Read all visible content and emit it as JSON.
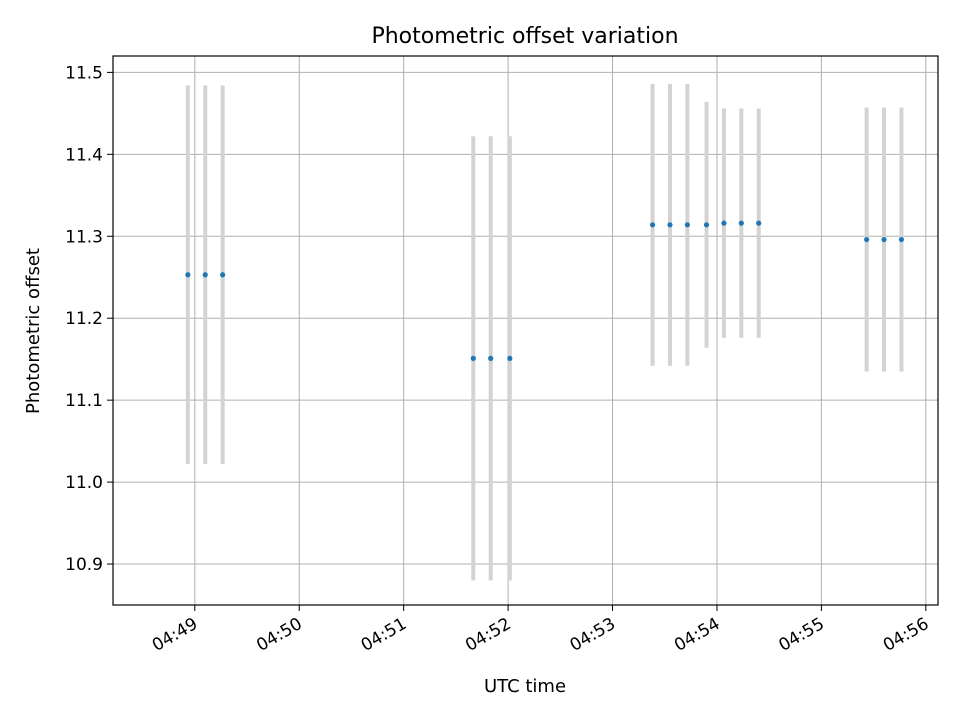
{
  "chart_data": {
    "type": "scatter",
    "title": "Photometric offset variation",
    "xlabel": "UTC time",
    "ylabel": "Photometric offset",
    "x_tick_labels": [
      "04:49",
      "04:50",
      "04:51",
      "04:52",
      "04:53",
      "04:54",
      "04:55",
      "04:56"
    ],
    "y_tick_labels": [
      "10.9",
      "11.0",
      "11.1",
      "11.2",
      "11.3",
      "11.4",
      "11.5"
    ],
    "xlim": [
      "04:48:13",
      "04:56:07"
    ],
    "ylim": [
      10.85,
      11.52
    ],
    "grid": true,
    "legend": "none",
    "point_color": "#1f77b4",
    "errorbar_color": "#d3d3d3",
    "points": [
      {
        "t": "04:48:56",
        "y": 11.253,
        "yerr": 0.231
      },
      {
        "t": "04:49:06",
        "y": 11.253,
        "yerr": 0.231
      },
      {
        "t": "04:49:16",
        "y": 11.253,
        "yerr": 0.231
      },
      {
        "t": "04:51:40",
        "y": 11.151,
        "yerr": 0.271
      },
      {
        "t": "04:51:50",
        "y": 11.151,
        "yerr": 0.271
      },
      {
        "t": "04:52:01",
        "y": 11.151,
        "yerr": 0.271
      },
      {
        "t": "04:53:23",
        "y": 11.314,
        "yerr": 0.172
      },
      {
        "t": "04:53:33",
        "y": 11.314,
        "yerr": 0.172
      },
      {
        "t": "04:53:43",
        "y": 11.314,
        "yerr": 0.172
      },
      {
        "t": "04:53:54",
        "y": 11.314,
        "yerr": 0.15
      },
      {
        "t": "04:54:04",
        "y": 11.316,
        "yerr": 0.14
      },
      {
        "t": "04:54:14",
        "y": 11.316,
        "yerr": 0.14
      },
      {
        "t": "04:54:24",
        "y": 11.316,
        "yerr": 0.14
      },
      {
        "t": "04:55:26",
        "y": 11.296,
        "yerr": 0.161
      },
      {
        "t": "04:55:36",
        "y": 11.296,
        "yerr": 0.161
      },
      {
        "t": "04:55:46",
        "y": 11.296,
        "yerr": 0.161
      }
    ]
  }
}
